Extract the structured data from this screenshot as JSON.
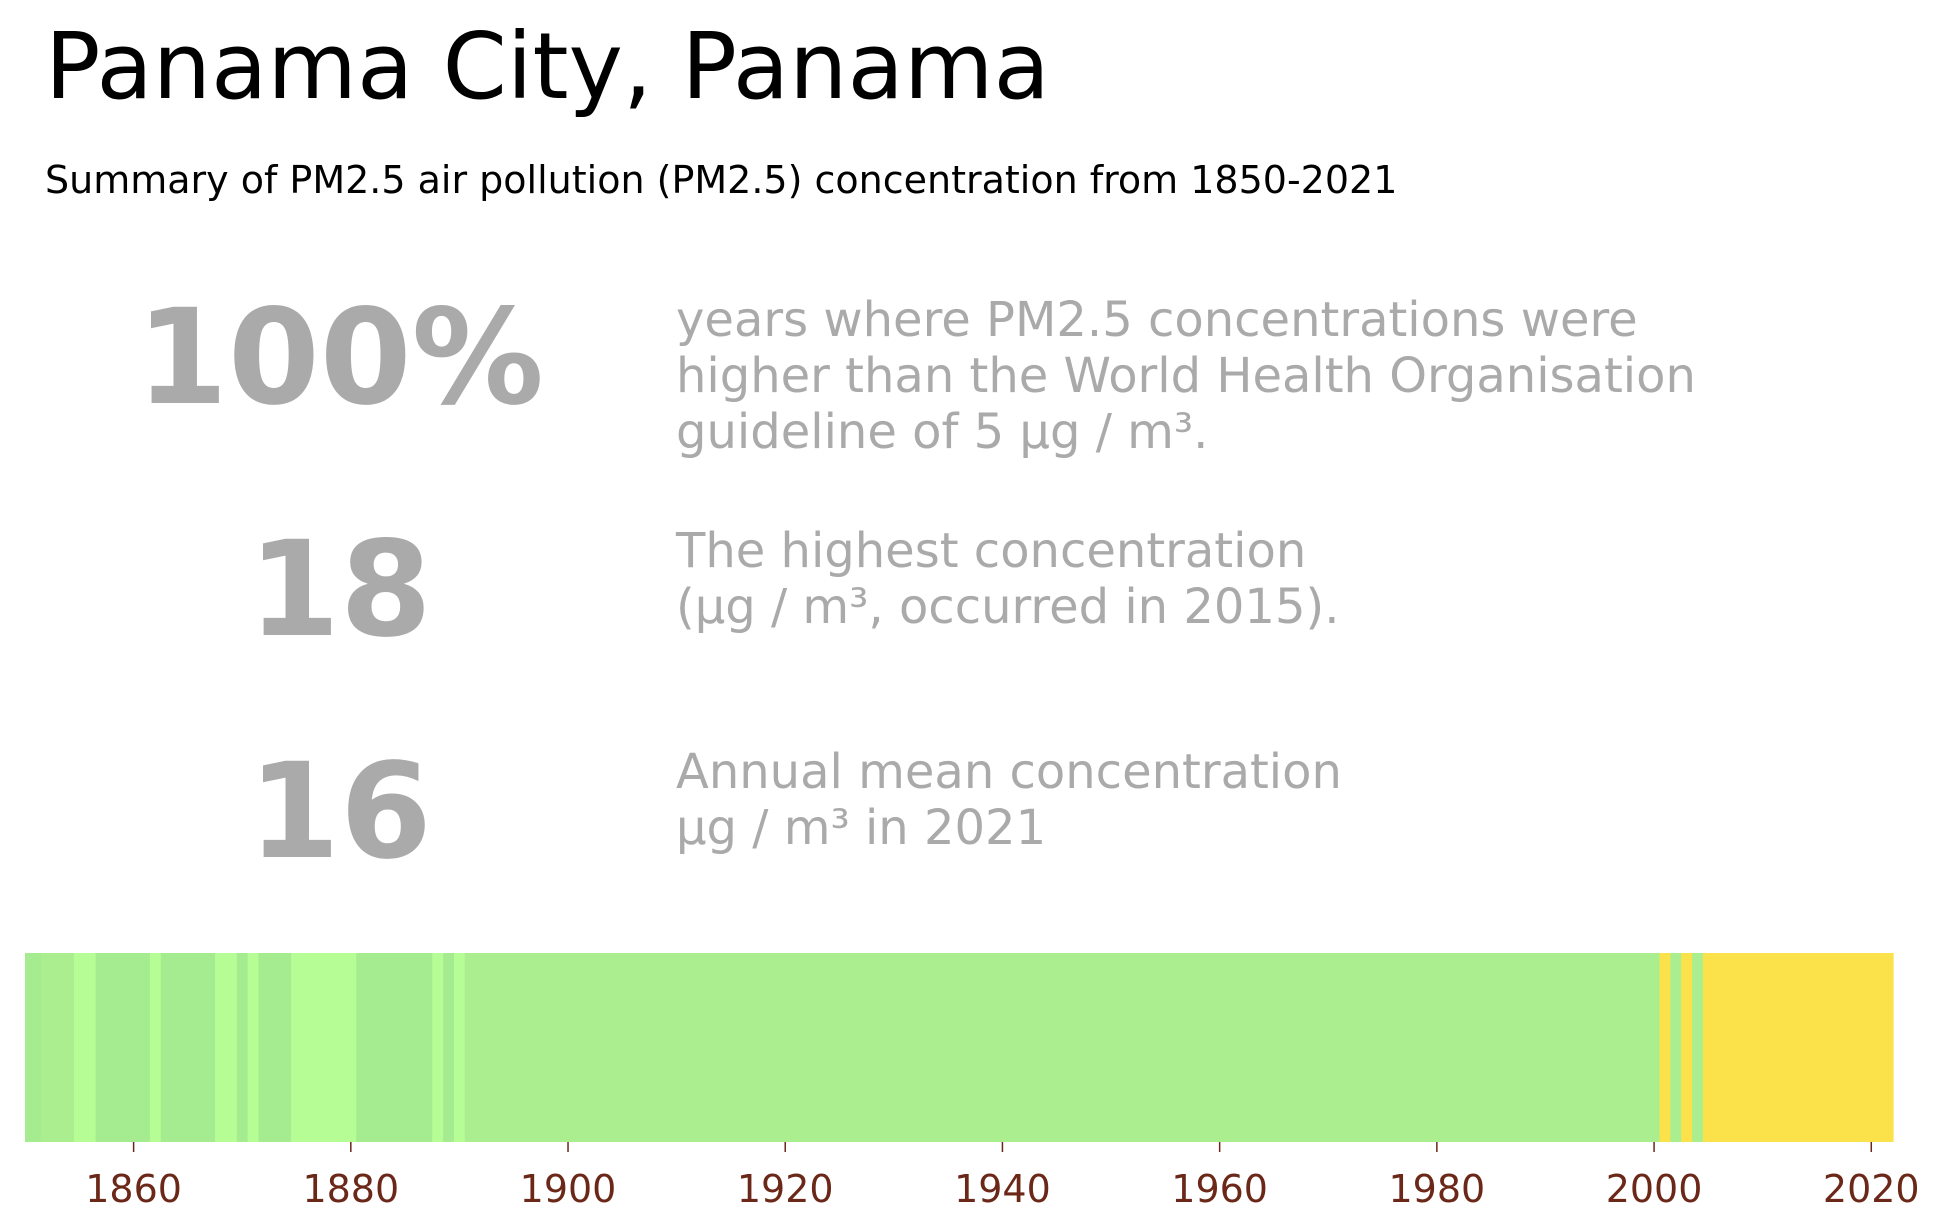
{
  "title": "Panama City, Panama",
  "subtitle": "Summary of PM2.5 air pollution (PM2.5) concentration from 1850-2021",
  "stats": [
    {
      "value": "100%",
      "lines": [
        "years where PM2.5 concentrations were",
        "higher than the World Health Organisation",
        "guideline of 5 µg / m³."
      ]
    },
    {
      "value": "18",
      "lines": [
        "The highest concentration",
        "(µg / m³, occurred in 2015)."
      ]
    },
    {
      "value": "16",
      "lines": [
        "Annual mean concentration",
        "µg / m³ in 2021"
      ]
    }
  ],
  "chart_data": {
    "type": "heatmap",
    "x_range": [
      1850,
      2022
    ],
    "x_ticks": [
      1860,
      1880,
      1900,
      1920,
      1940,
      1960,
      1980,
      2000,
      2020
    ],
    "tick_color": "#6b2818",
    "colors": {
      "medium_green": "#a5ec90",
      "light_green": "#b6fd96",
      "base_green": "#aaee90",
      "yellow": "#fbe14a"
    },
    "segments": [
      {
        "start": 1850,
        "end": 1851.5,
        "color": "medium_green"
      },
      {
        "start": 1851.5,
        "end": 1854.5,
        "color": "base_green"
      },
      {
        "start": 1854.5,
        "end": 1856.5,
        "color": "light_green"
      },
      {
        "start": 1856.5,
        "end": 1861.5,
        "color": "medium_green"
      },
      {
        "start": 1861.5,
        "end": 1862.5,
        "color": "light_green"
      },
      {
        "start": 1862.5,
        "end": 1867.5,
        "color": "medium_green"
      },
      {
        "start": 1867.5,
        "end": 1869.5,
        "color": "light_green"
      },
      {
        "start": 1869.5,
        "end": 1870.5,
        "color": "medium_green"
      },
      {
        "start": 1870.5,
        "end": 1871.5,
        "color": "light_green"
      },
      {
        "start": 1871.5,
        "end": 1874.5,
        "color": "medium_green"
      },
      {
        "start": 1874.5,
        "end": 1880.5,
        "color": "light_green"
      },
      {
        "start": 1880.5,
        "end": 1887.5,
        "color": "medium_green"
      },
      {
        "start": 1887.5,
        "end": 1888.5,
        "color": "light_green"
      },
      {
        "start": 1888.5,
        "end": 1889.5,
        "color": "medium_green"
      },
      {
        "start": 1889.5,
        "end": 1890.5,
        "color": "light_green"
      },
      {
        "start": 1890.5,
        "end": 2000.5,
        "color": "base_green"
      },
      {
        "start": 2000.5,
        "end": 2001.5,
        "color": "yellow"
      },
      {
        "start": 2001.5,
        "end": 2002.5,
        "color": "base_green"
      },
      {
        "start": 2002.5,
        "end": 2003.5,
        "color": "yellow"
      },
      {
        "start": 2003.5,
        "end": 2004.5,
        "color": "base_green"
      },
      {
        "start": 2004.5,
        "end": 2022,
        "color": "yellow"
      }
    ]
  }
}
